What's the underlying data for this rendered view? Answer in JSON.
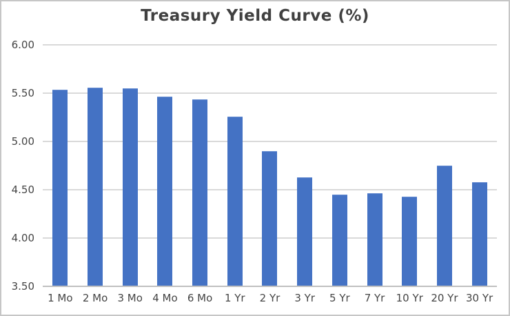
{
  "frame": {
    "background": "#ffffff",
    "border_color": "#c6c6c6"
  },
  "chart_data": {
    "type": "bar",
    "title": "Treasury Yield Curve (%)",
    "categories": [
      "1 Mo",
      "2 Mo",
      "3 Mo",
      "4 Mo",
      "6 Mo",
      "1 Yr",
      "2 Yr",
      "3 Yr",
      "5 Yr",
      "7 Yr",
      "10 Yr",
      "20 Yr",
      "30 Yr"
    ],
    "values": [
      5.53,
      5.55,
      5.54,
      5.46,
      5.43,
      5.25,
      4.89,
      4.62,
      4.44,
      4.46,
      4.42,
      4.74,
      4.57
    ],
    "xlabel": "",
    "ylabel": "",
    "ylim": [
      3.5,
      6.0
    ],
    "ytick_step": 0.5,
    "ytick_labels": [
      "6.00",
      "5.50",
      "5.00",
      "4.50",
      "4.00",
      "3.50"
    ],
    "grid": true,
    "legend": "none",
    "colors": {
      "bar": "#4472C4",
      "bar_edge": "#6A8FD2",
      "gridline": "#D9D9D9",
      "axis_line": "#BFBFBF",
      "title_text": "#404040",
      "tick_text": "#444444"
    }
  }
}
